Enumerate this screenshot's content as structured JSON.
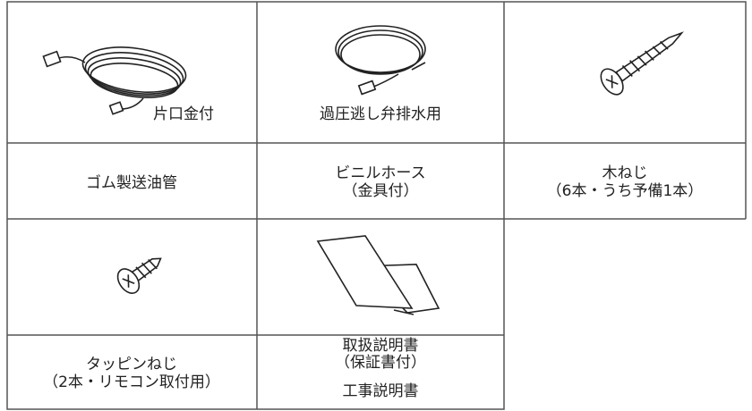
{
  "items": [
    {
      "image_label": "片口金付",
      "name": [
        "ゴム製送油管"
      ]
    },
    {
      "image_label": "過圧逃し弁排水用",
      "name": [
        "ビニルホース",
        "（金具付）"
      ]
    },
    {
      "name": [
        "木ねじ",
        "（6本・うち予備1本）"
      ]
    },
    {
      "name": [
        "タッピンねじ",
        "（2本・リモコン取付用）"
      ]
    },
    {
      "name": [
        "取扱説明書",
        "（保証書付）",
        "工事説明書"
      ]
    }
  ]
}
